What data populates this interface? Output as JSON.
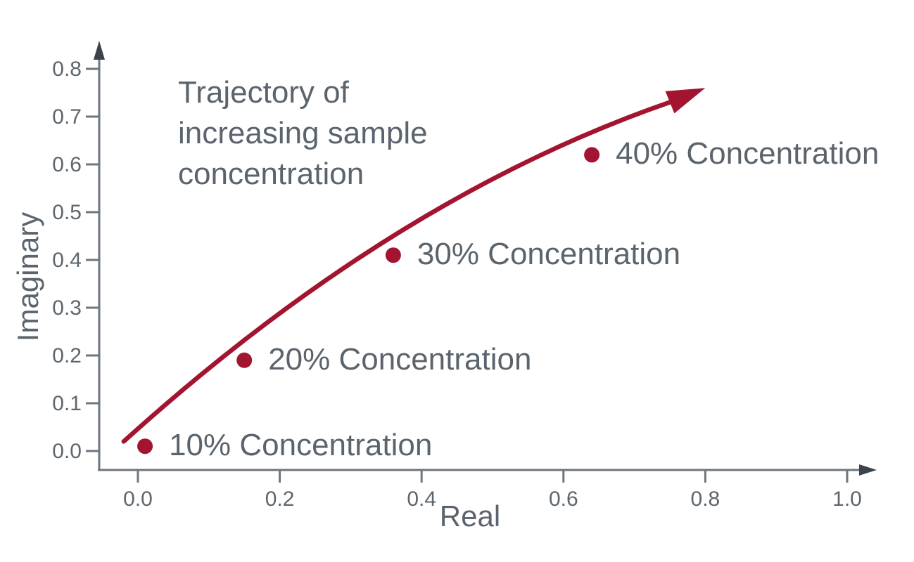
{
  "chart_data": {
    "type": "scatter",
    "xlabel": "Real",
    "ylabel": "Imaginary",
    "annotation": {
      "lines": [
        "Trajectory of",
        "increasing sample",
        "concentration"
      ]
    },
    "x_ticks": [
      0.0,
      0.2,
      0.4,
      0.6,
      0.8,
      1.0
    ],
    "x_tick_labels": [
      "0.0",
      "0.2",
      "0.4",
      "0.6",
      "0.8",
      "1.0"
    ],
    "y_ticks": [
      0.0,
      0.1,
      0.2,
      0.3,
      0.4,
      0.5,
      0.6,
      0.7,
      0.8
    ],
    "y_tick_labels": [
      "0.0",
      "0.1",
      "0.2",
      "0.3",
      "0.4",
      "0.5",
      "0.6",
      "0.7",
      "0.8"
    ],
    "xlim": [
      -0.06,
      1.05
    ],
    "ylim": [
      -0.04,
      0.85
    ],
    "grid": false,
    "legend": false,
    "points": [
      {
        "label": "10% Concentration",
        "x": 0.01,
        "y": 0.01
      },
      {
        "label": "20% Concentration",
        "x": 0.15,
        "y": 0.19
      },
      {
        "label": "30% Concentration",
        "x": 0.36,
        "y": 0.41
      },
      {
        "label": "40% Concentration",
        "x": 0.64,
        "y": 0.62
      }
    ],
    "trajectory_arrow": {
      "start": {
        "x": -0.02,
        "y": 0.02
      },
      "control": {
        "x": 0.36,
        "y": 0.53
      },
      "end": {
        "x": 0.75,
        "y": 0.73
      },
      "tip": {
        "x": 0.8,
        "y": 0.76
      }
    },
    "colors": {
      "series": "#A2142F",
      "text": "#5B646D",
      "tick_text": "#5D666E",
      "axis": "#6E767E",
      "axis_arrow": "#3A434C"
    }
  }
}
